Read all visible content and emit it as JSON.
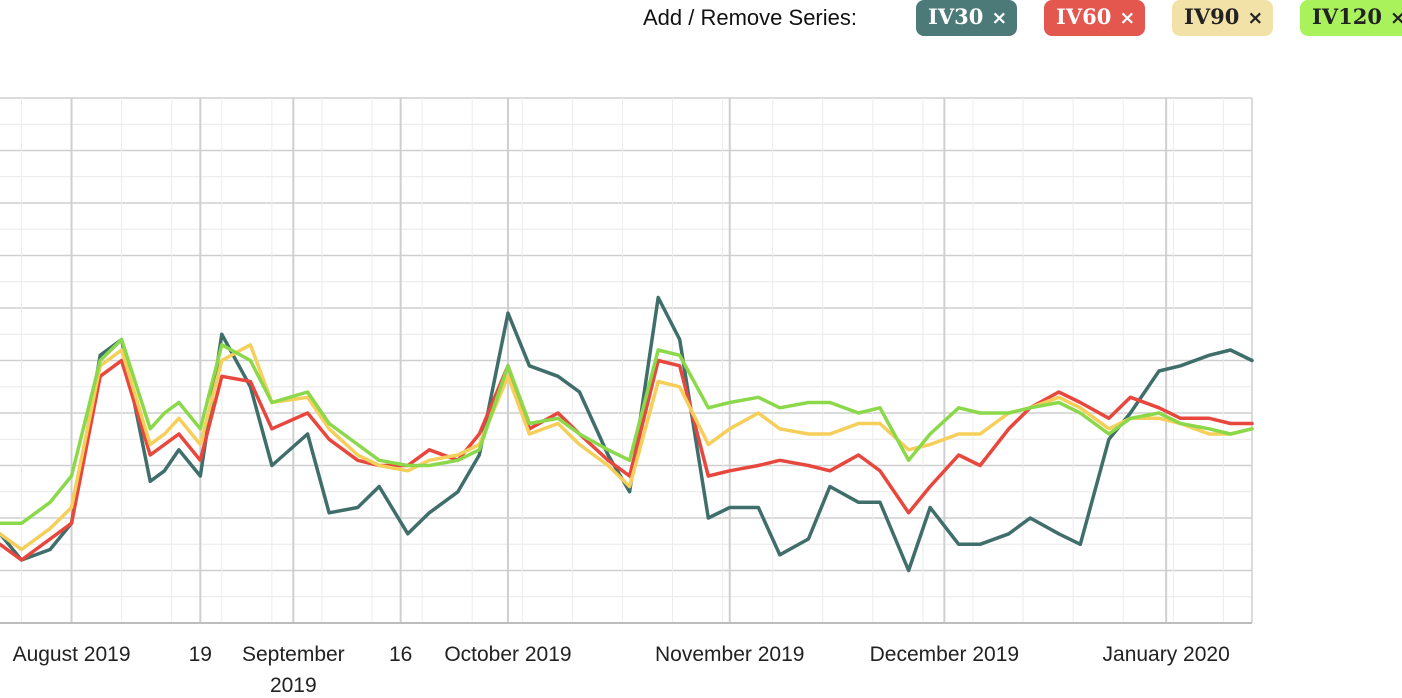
{
  "toolbar": {
    "label": "Add / Remove Series:",
    "chips": [
      {
        "label": "IV30",
        "remove": "×",
        "bg": "#4b7a78",
        "fg": "#ffffff"
      },
      {
        "label": "IV60",
        "remove": "×",
        "bg": "#e4574f",
        "fg": "#ffffff"
      },
      {
        "label": "IV90",
        "remove": "×",
        "bg": "#f2e2a8",
        "fg": "#222222"
      },
      {
        "label": "IV120",
        "remove": "×",
        "bg": "#a9f25c",
        "fg": "#222222"
      }
    ]
  },
  "chart_data": {
    "type": "line",
    "title": "",
    "xlabel": "",
    "ylabel": "",
    "ylim": [
      0,
      10
    ],
    "grid": true,
    "x_ticks": [
      {
        "label": "August 2019",
        "date": "2019-08-01"
      },
      {
        "label": "19",
        "date": "2019-08-19"
      },
      {
        "label": "September 2019",
        "date": "2019-09-01"
      },
      {
        "label": "16",
        "date": "2019-09-16"
      },
      {
        "label": "October 2019",
        "date": "2019-10-01"
      },
      {
        "label": "November 2019",
        "date": "2019-11-01"
      },
      {
        "label": "December 2019",
        "date": "2019-12-01"
      },
      {
        "label": "January 2020",
        "date": "2020-01-01"
      }
    ],
    "x": [
      "2019-07-22",
      "2019-07-25",
      "2019-07-29",
      "2019-08-01",
      "2019-08-05",
      "2019-08-08",
      "2019-08-12",
      "2019-08-14",
      "2019-08-16",
      "2019-08-19",
      "2019-08-22",
      "2019-08-26",
      "2019-08-29",
      "2019-09-03",
      "2019-09-06",
      "2019-09-10",
      "2019-09-13",
      "2019-09-17",
      "2019-09-20",
      "2019-09-24",
      "2019-09-27",
      "2019-10-01",
      "2019-10-04",
      "2019-10-08",
      "2019-10-11",
      "2019-10-15",
      "2019-10-18",
      "2019-10-22",
      "2019-10-25",
      "2019-10-29",
      "2019-11-01",
      "2019-11-05",
      "2019-11-08",
      "2019-11-12",
      "2019-11-15",
      "2019-11-19",
      "2019-11-22",
      "2019-11-26",
      "2019-11-29",
      "2019-12-03",
      "2019-12-06",
      "2019-12-10",
      "2019-12-13",
      "2019-12-17",
      "2019-12-20",
      "2019-12-24",
      "2019-12-27",
      "2019-12-31",
      "2020-01-03",
      "2020-01-07",
      "2020-01-10",
      "2020-01-13"
    ],
    "series": [
      {
        "name": "IV30",
        "color": "#3f6e6b",
        "values": [
          1.7,
          1.2,
          1.4,
          1.9,
          5.1,
          5.4,
          2.7,
          2.9,
          3.3,
          2.8,
          5.5,
          4.5,
          3.0,
          3.6,
          2.1,
          2.2,
          2.6,
          1.7,
          2.1,
          2.5,
          3.2,
          5.9,
          4.9,
          4.7,
          4.4,
          3.2,
          2.5,
          6.2,
          5.4,
          2.0,
          2.2,
          2.2,
          1.3,
          1.6,
          2.6,
          2.3,
          2.3,
          1.0,
          2.2,
          1.5,
          1.5,
          1.7,
          2.0,
          1.7,
          1.5,
          3.5,
          4.0,
          4.8,
          4.9,
          5.1,
          5.2,
          5.0
        ]
      },
      {
        "name": "IV60",
        "color": "#e8473d",
        "values": [
          1.5,
          1.2,
          1.6,
          1.9,
          4.7,
          5.0,
          3.2,
          3.4,
          3.6,
          3.1,
          4.7,
          4.6,
          3.7,
          4.0,
          3.5,
          3.1,
          3.0,
          3.0,
          3.3,
          3.1,
          3.6,
          4.9,
          3.7,
          4.0,
          3.6,
          3.1,
          2.8,
          5.0,
          4.9,
          2.8,
          2.9,
          3.0,
          3.1,
          3.0,
          2.9,
          3.2,
          2.9,
          2.1,
          2.6,
          3.2,
          3.0,
          3.7,
          4.1,
          4.4,
          4.2,
          3.9,
          4.3,
          4.1,
          3.9,
          3.9,
          3.8,
          3.8
        ]
      },
      {
        "name": "IV90",
        "color": "#f5cf5a",
        "values": [
          1.7,
          1.4,
          1.8,
          2.2,
          4.9,
          5.2,
          3.4,
          3.6,
          3.9,
          3.4,
          5.0,
          5.3,
          4.2,
          4.3,
          3.7,
          3.2,
          3.0,
          2.9,
          3.1,
          3.2,
          3.4,
          4.7,
          3.6,
          3.8,
          3.4,
          3.0,
          2.6,
          4.6,
          4.5,
          3.4,
          3.7,
          4.0,
          3.7,
          3.6,
          3.6,
          3.8,
          3.8,
          3.3,
          3.4,
          3.6,
          3.6,
          4.0,
          4.1,
          4.3,
          4.1,
          3.7,
          3.9,
          3.9,
          3.8,
          3.6,
          3.6,
          3.7
        ]
      },
      {
        "name": "IV120",
        "color": "#8bd94b",
        "values": [
          1.9,
          1.9,
          2.3,
          2.8,
          5.0,
          5.4,
          3.7,
          4.0,
          4.2,
          3.7,
          5.3,
          5.0,
          4.2,
          4.4,
          3.8,
          3.4,
          3.1,
          3.0,
          3.0,
          3.1,
          3.3,
          4.9,
          3.8,
          3.9,
          3.6,
          3.3,
          3.1,
          5.2,
          5.1,
          4.1,
          4.2,
          4.3,
          4.1,
          4.2,
          4.2,
          4.0,
          4.1,
          3.1,
          3.6,
          4.1,
          4.0,
          4.0,
          4.1,
          4.2,
          4.0,
          3.6,
          3.9,
          4.0,
          3.8,
          3.7,
          3.6,
          3.7
        ]
      }
    ]
  }
}
